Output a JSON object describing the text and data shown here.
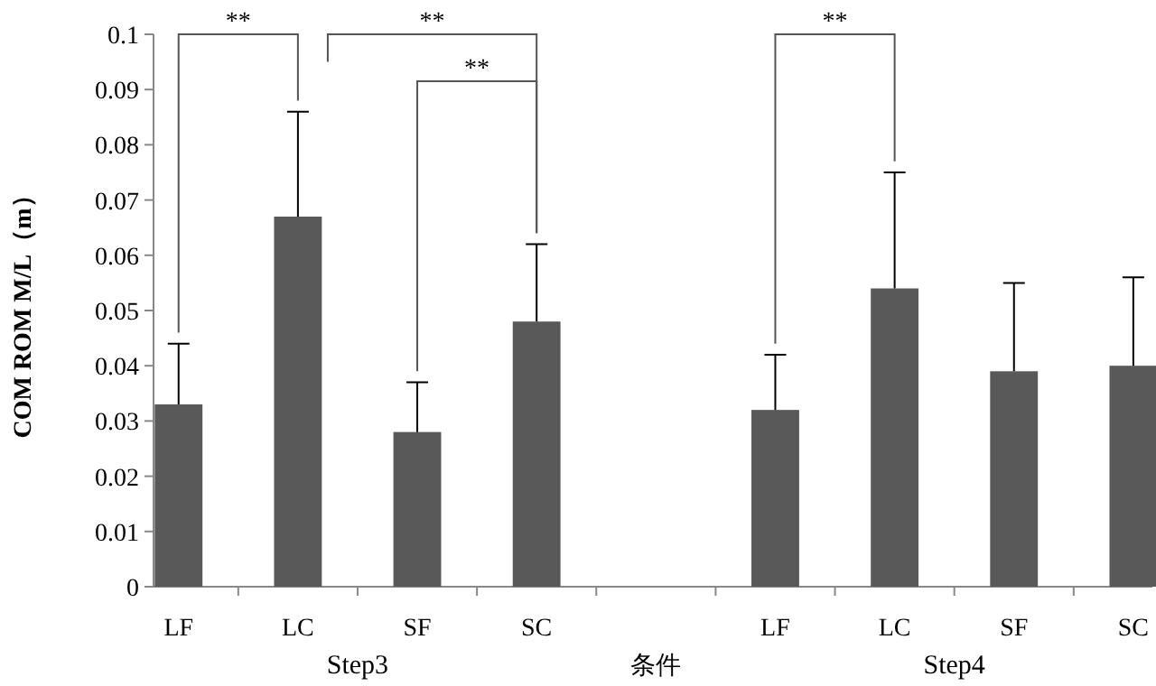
{
  "chart_data": {
    "type": "bar",
    "categories": [
      "LF",
      "LC",
      "SF",
      "SC",
      null,
      "LF",
      "LC",
      "SF",
      "SC"
    ],
    "values": [
      0.033,
      0.067,
      0.028,
      0.048,
      null,
      0.032,
      0.054,
      0.039,
      0.04
    ],
    "errors": [
      [
        0.033,
        0.044
      ],
      [
        0.067,
        0.086
      ],
      [
        0.028,
        0.037
      ],
      [
        0.048,
        0.062
      ],
      null,
      [
        0.032,
        0.042
      ],
      [
        0.054,
        0.075
      ],
      [
        0.039,
        0.055
      ],
      [
        0.04,
        0.056
      ]
    ],
    "color": "#595959",
    "xlabel": "条件",
    "ylabel": "COM ROM M/L（m）",
    "ylim": [
      0,
      0.1
    ],
    "yticks": [
      0,
      0.01,
      0.02,
      0.03,
      0.04,
      0.05,
      0.06,
      0.07,
      0.08,
      0.09,
      0.1
    ],
    "annotations": [
      "**",
      "**",
      "**",
      "**",
      "Step3",
      "Step4"
    ],
    "grid": false
  }
}
